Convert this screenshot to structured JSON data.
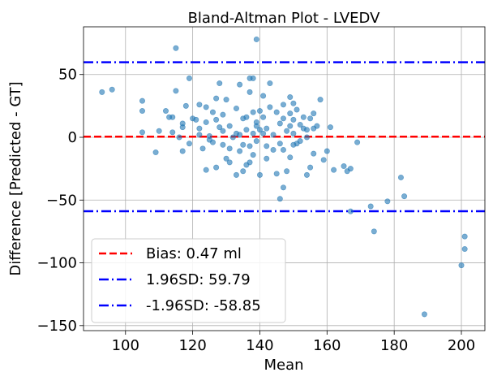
{
  "chart_data": {
    "type": "scatter",
    "title": "Bland-Altman Plot - LVEDV",
    "xlabel": "Mean",
    "ylabel": "Difference [Predicted - GT]",
    "xlim": [
      87.5,
      207
    ],
    "ylim": [
      -154,
      88
    ],
    "xticks": [
      100,
      120,
      140,
      160,
      180,
      200
    ],
    "yticks": [
      -150,
      -100,
      -50,
      0,
      50
    ],
    "xtick_labels": [
      "100",
      "120",
      "140",
      "160",
      "180",
      "200"
    ],
    "ytick_labels": [
      "−150",
      "−100",
      "−50",
      "0",
      "50"
    ],
    "grid": true,
    "legend_position": "lower-left",
    "colors": {
      "points": "#1f77b4",
      "bias": "#ff0000",
      "limits": "#0000ff"
    },
    "lines": [
      {
        "label": "Bias: 0.47 ml",
        "y": 0.47,
        "style": "dashed",
        "color": "#ff0000"
      },
      {
        "label": "1.96SD: 59.79",
        "y": 59.79,
        "style": "dashdot",
        "color": "#0000ff"
      },
      {
        "label": "-1.96SD: -58.85",
        "y": -58.85,
        "style": "dashdot",
        "color": "#0000ff"
      }
    ],
    "points": [
      [
        93,
        36
      ],
      [
        96,
        38
      ],
      [
        105,
        29
      ],
      [
        105,
        21
      ],
      [
        105,
        4
      ],
      [
        109,
        -12
      ],
      [
        110,
        5
      ],
      [
        112,
        21
      ],
      [
        113,
        16
      ],
      [
        114,
        4
      ],
      [
        114,
        16
      ],
      [
        115,
        37
      ],
      [
        115,
        71
      ],
      [
        116,
        0
      ],
      [
        117,
        -11
      ],
      [
        117,
        11
      ],
      [
        117,
        8
      ],
      [
        118,
        25
      ],
      [
        119,
        -5
      ],
      [
        119,
        47
      ],
      [
        120,
        15
      ],
      [
        121,
        14
      ],
      [
        122,
        26
      ],
      [
        122,
        2
      ],
      [
        122,
        7
      ],
      [
        123,
        -9
      ],
      [
        124,
        24
      ],
      [
        124,
        12
      ],
      [
        124,
        -26
      ],
      [
        125,
        -2
      ],
      [
        125,
        1
      ],
      [
        126,
        20
      ],
      [
        126,
        -4
      ],
      [
        127,
        31
      ],
      [
        127,
        -24
      ],
      [
        127,
        14
      ],
      [
        128,
        43
      ],
      [
        128,
        8
      ],
      [
        129,
        -6
      ],
      [
        129,
        5
      ],
      [
        129,
        18
      ],
      [
        130,
        30
      ],
      [
        130,
        -17
      ],
      [
        131,
        -9
      ],
      [
        131,
        9
      ],
      [
        131,
        -20
      ],
      [
        132,
        0
      ],
      [
        133,
        23
      ],
      [
        133,
        3
      ],
      [
        133,
        -30
      ],
      [
        134,
        42
      ],
      [
        134,
        -11
      ],
      [
        134,
        2
      ],
      [
        135,
        -6
      ],
      [
        135,
        15
      ],
      [
        135,
        -27
      ],
      [
        136,
        6
      ],
      [
        136,
        16
      ],
      [
        136,
        -22
      ],
      [
        137,
        47
      ],
      [
        137,
        36
      ],
      [
        137,
        -20
      ],
      [
        137,
        -7
      ],
      [
        138,
        47
      ],
      [
        138,
        20
      ],
      [
        138,
        3
      ],
      [
        138,
        -14
      ],
      [
        139,
        78
      ],
      [
        139,
        9
      ],
      [
        139,
        12
      ],
      [
        139,
        -3
      ],
      [
        140,
        21
      ],
      [
        140,
        6
      ],
      [
        140,
        -30
      ],
      [
        141,
        33
      ],
      [
        141,
        16
      ],
      [
        141,
        3
      ],
      [
        142,
        7
      ],
      [
        142,
        -17
      ],
      [
        142,
        -7
      ],
      [
        143,
        43
      ],
      [
        143,
        24
      ],
      [
        144,
        2
      ],
      [
        144,
        -10
      ],
      [
        145,
        20
      ],
      [
        145,
        -29
      ],
      [
        146,
        -5
      ],
      [
        146,
        11
      ],
      [
        146,
        -49
      ],
      [
        147,
        26
      ],
      [
        147,
        -10
      ],
      [
        147,
        15
      ],
      [
        147,
        -40
      ],
      [
        148,
        5
      ],
      [
        148,
        -27
      ],
      [
        149,
        32
      ],
      [
        149,
        19
      ],
      [
        149,
        9
      ],
      [
        149,
        -16
      ],
      [
        150,
        27
      ],
      [
        150,
        3
      ],
      [
        150,
        14
      ],
      [
        150,
        -6
      ],
      [
        151,
        22
      ],
      [
        151,
        -5
      ],
      [
        152,
        10
      ],
      [
        152,
        -3
      ],
      [
        153,
        16
      ],
      [
        153,
        7
      ],
      [
        154,
        -30
      ],
      [
        154,
        0
      ],
      [
        154,
        6
      ],
      [
        155,
        -24
      ],
      [
        155,
        15
      ],
      [
        156,
        19
      ],
      [
        156,
        7
      ],
      [
        156,
        -13
      ],
      [
        157,
        9
      ],
      [
        158,
        30
      ],
      [
        159,
        -18
      ],
      [
        160,
        -11
      ],
      [
        161,
        8
      ],
      [
        162,
        -26
      ],
      [
        165,
        -23
      ],
      [
        166,
        -27
      ],
      [
        167,
        -59
      ],
      [
        167,
        -25
      ],
      [
        169,
        -4
      ],
      [
        173,
        -55
      ],
      [
        174,
        -75
      ],
      [
        178,
        -51
      ],
      [
        182,
        -32
      ],
      [
        183,
        -47
      ],
      [
        189,
        -141
      ],
      [
        200,
        -102
      ],
      [
        201,
        -89
      ],
      [
        201,
        -79
      ]
    ]
  }
}
